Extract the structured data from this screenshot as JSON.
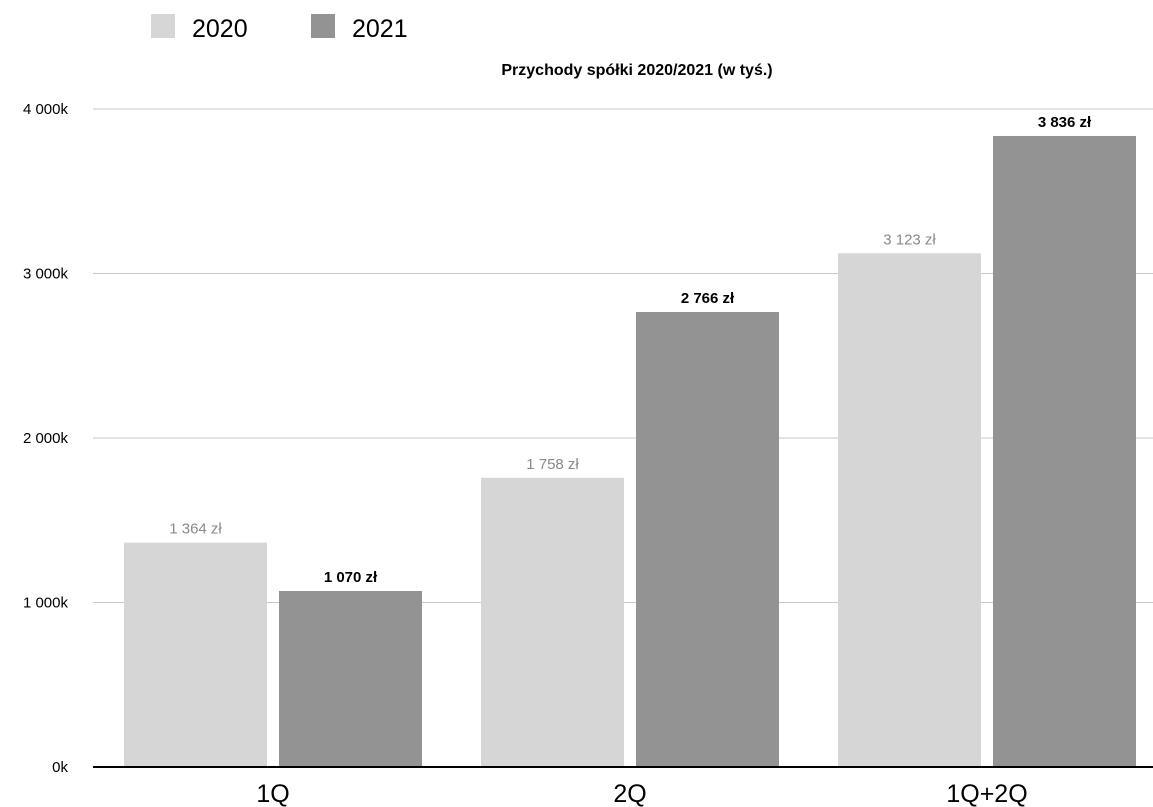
{
  "chart_data": {
    "type": "bar",
    "title": "Przychody spółki 2020/2021 (w tyś.)",
    "categories": [
      "1Q",
      "2Q",
      "1Q+2Q"
    ],
    "series": [
      {
        "name": "2020",
        "color": "#d6d6d6",
        "values": [
          1364,
          1758,
          3123
        ],
        "labels": [
          "1 364 zł",
          "1 758 zł",
          "3 123 zł"
        ]
      },
      {
        "name": "2021",
        "color": "#939393",
        "values": [
          1070,
          2766,
          3836
        ],
        "labels": [
          "1 070 zł",
          "2 766 zł",
          "3 836 zł"
        ]
      }
    ],
    "ylim": [
      0,
      4000
    ],
    "yticks": [
      0,
      1000,
      2000,
      3000,
      4000
    ],
    "ytick_labels": [
      "0k",
      "1 000k",
      "2 000k",
      "3 000k",
      "4 000k"
    ],
    "xlabel": "",
    "ylabel": "",
    "grid": true,
    "legend_position": "top-left"
  }
}
